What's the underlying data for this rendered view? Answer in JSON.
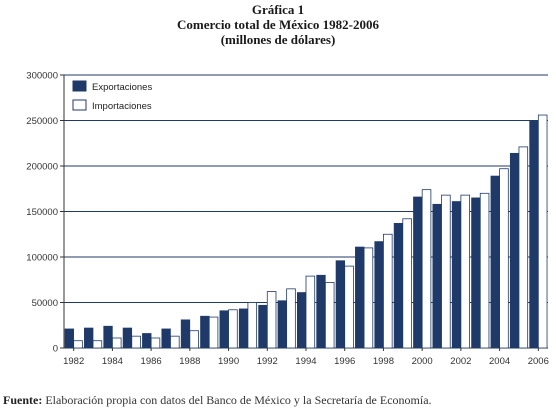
{
  "chart_data": {
    "type": "bar",
    "title": "Gráfica 1",
    "subtitle": "Comercio total de México 1982-2006",
    "units": "(millones de dólares)",
    "x": [
      1982,
      1983,
      1984,
      1985,
      1986,
      1987,
      1988,
      1989,
      1990,
      1991,
      1992,
      1993,
      1994,
      1995,
      1996,
      1997,
      1998,
      1999,
      2000,
      2001,
      2002,
      2003,
      2004,
      2005,
      2006
    ],
    "x_tick_labels": [
      "1982",
      "1984",
      "1986",
      "1988",
      "1990",
      "1992",
      "1994",
      "1996",
      "1998",
      "2000",
      "2002",
      "2004",
      "2006"
    ],
    "ylim": [
      0,
      300000
    ],
    "y_tick_labels": [
      "0",
      "50000",
      "100000",
      "150000",
      "200000",
      "250000",
      "300000"
    ],
    "y_ticks": [
      0,
      50000,
      100000,
      150000,
      200000,
      250000,
      300000
    ],
    "grid": true,
    "legend_position": "top-left",
    "series": [
      {
        "name": "Exportaciones",
        "color": "#1f3a68",
        "values": [
          21000,
          22000,
          24000,
          22000,
          16000,
          21000,
          31000,
          35000,
          41000,
          43000,
          47000,
          52000,
          61000,
          80000,
          96000,
          111000,
          117000,
          137000,
          166000,
          158000,
          161000,
          165000,
          189000,
          214000,
          250000
        ]
      },
      {
        "name": "Importaciones",
        "color": "#ffffff",
        "values": [
          8000,
          8000,
          11000,
          13000,
          11000,
          13000,
          19000,
          34000,
          42000,
          50000,
          62000,
          65000,
          79000,
          72000,
          90000,
          110000,
          125000,
          142000,
          174000,
          168000,
          168000,
          170000,
          197000,
          221000,
          256000
        ]
      }
    ]
  },
  "source": {
    "label": "Fuente:",
    "text": "Elaboración propia con datos del Banco de México y la Secretaría de Economía."
  }
}
